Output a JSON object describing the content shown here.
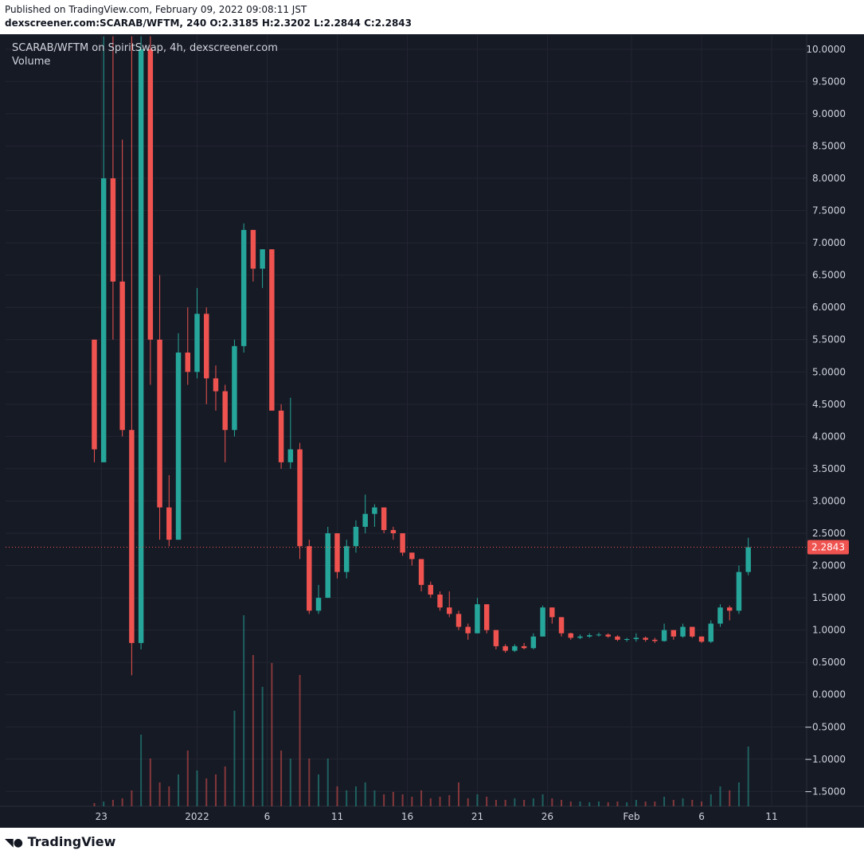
{
  "header": {
    "published": "Published on TradingView.com, February 09, 2022 09:08:11 JST",
    "symbol_line": "dexscreener.com:SCARAB/WFTM, 240 O:2.3185 H:2.3202 L:2.2844 C:2.2843"
  },
  "footer": {
    "brand": "TradingView"
  },
  "chart_data": {
    "type": "candlestick",
    "title": "SCARAB/WFTM on SpiritSwap, 4h, dexscreener.com",
    "volume_label": "Volume",
    "up_color": "#26a69a",
    "down_color": "#ef5350",
    "grid": true,
    "last_price": 2.2843,
    "xlim": [
      -41,
      302
    ],
    "xticks": [
      {
        "value": 0,
        "label": "23"
      },
      {
        "value": 41,
        "label": "2022"
      },
      {
        "value": 71,
        "label": "6"
      },
      {
        "value": 101,
        "label": "11"
      },
      {
        "value": 131,
        "label": "16"
      },
      {
        "value": 161,
        "label": "21"
      },
      {
        "value": 191,
        "label": "26"
      },
      {
        "value": 227,
        "label": "Feb"
      },
      {
        "value": 257,
        "label": "6"
      },
      {
        "value": 287,
        "label": "11"
      }
    ],
    "ylim": [
      -1.73,
      10.22
    ],
    "yticks": [
      {
        "value": -1.5,
        "label": "−1.5000"
      },
      {
        "value": -1,
        "label": "−1.0000"
      },
      {
        "value": -0.5,
        "label": "−0.5000"
      },
      {
        "value": 0,
        "label": "0.0000"
      },
      {
        "value": 0.5,
        "label": "0.5000"
      },
      {
        "value": 1,
        "label": "1.0000"
      },
      {
        "value": 1.5,
        "label": "1.5000"
      },
      {
        "value": 2,
        "label": "2.0000"
      },
      {
        "value": 2.5,
        "label": "2.5000"
      },
      {
        "value": 3,
        "label": "3.0000"
      },
      {
        "value": 3.5,
        "label": "3.5000"
      },
      {
        "value": 4,
        "label": "4.0000"
      },
      {
        "value": 4.5,
        "label": "4.5000"
      },
      {
        "value": 5,
        "label": "5.0000"
      },
      {
        "value": 5.5,
        "label": "5.5000"
      },
      {
        "value": 6,
        "label": "6.0000"
      },
      {
        "value": 6.5,
        "label": "6.5000"
      },
      {
        "value": 7,
        "label": "7.0000"
      },
      {
        "value": 7.5,
        "label": "7.5000"
      },
      {
        "value": 8,
        "label": "8.0000"
      },
      {
        "value": 8.5,
        "label": "8.5000"
      },
      {
        "value": 9,
        "label": "9.0000"
      },
      {
        "value": 9.5,
        "label": "9.5000"
      },
      {
        "value": 10,
        "label": "10.0000"
      }
    ],
    "x": [
      -3,
      1,
      5,
      9,
      13,
      17,
      21,
      25,
      29,
      33,
      37,
      41,
      45,
      49,
      53,
      57,
      61,
      65,
      69,
      73,
      77,
      81,
      85,
      89,
      93,
      97,
      101,
      105,
      109,
      113,
      117,
      121,
      125,
      129,
      133,
      137,
      141,
      145,
      149,
      153,
      157,
      161,
      165,
      169,
      173,
      177,
      181,
      185,
      189,
      193,
      197,
      201,
      205,
      209,
      213,
      217,
      221,
      225,
      229,
      233,
      237,
      241,
      245,
      249,
      253,
      257,
      261,
      265,
      269,
      273,
      277
    ],
    "open": [
      5.5,
      3.6,
      8.0,
      6.4,
      4.1,
      0.8,
      10.0,
      5.5,
      2.9,
      2.4,
      5.3,
      5.0,
      5.9,
      4.9,
      4.7,
      4.1,
      5.4,
      7.2,
      6.6,
      6.9,
      4.4,
      3.6,
      3.8,
      2.3,
      1.3,
      1.5,
      2.5,
      1.9,
      2.3,
      2.6,
      2.8,
      2.9,
      2.55,
      2.5,
      2.2,
      2.1,
      1.7,
      1.55,
      1.35,
      1.25,
      1.05,
      0.95,
      1.4,
      1.0,
      0.75,
      0.68,
      0.75,
      0.72,
      0.9,
      1.35,
      1.2,
      0.95,
      0.88,
      0.9,
      0.92,
      0.93,
      0.9,
      0.85,
      0.86,
      0.88,
      0.85,
      0.83,
      1.0,
      0.9,
      1.05,
      0.9,
      0.82,
      1.1,
      1.35,
      1.3,
      1.9
    ],
    "high": [
      5.5,
      10.2,
      10.2,
      8.6,
      10.2,
      10.2,
      10.2,
      6.5,
      3.4,
      5.6,
      6.0,
      6.3,
      6.0,
      5.1,
      4.8,
      5.5,
      7.3,
      7.2,
      6.9,
      6.9,
      4.5,
      4.6,
      3.9,
      2.4,
      1.7,
      2.6,
      2.5,
      2.4,
      2.7,
      3.1,
      2.95,
      2.9,
      2.6,
      2.5,
      2.2,
      2.1,
      1.75,
      1.6,
      1.6,
      1.3,
      1.1,
      1.5,
      1.4,
      1.0,
      0.78,
      0.78,
      0.8,
      0.95,
      1.38,
      1.35,
      1.2,
      0.96,
      0.93,
      0.95,
      0.96,
      0.95,
      0.92,
      0.88,
      0.95,
      0.9,
      0.88,
      1.1,
      1.0,
      1.1,
      1.05,
      0.9,
      1.15,
      1.4,
      1.38,
      2.0,
      2.43
    ],
    "low": [
      3.6,
      3.6,
      5.5,
      4.0,
      0.3,
      0.7,
      4.8,
      2.4,
      2.3,
      2.4,
      4.8,
      4.9,
      4.5,
      4.4,
      3.6,
      4.0,
      5.3,
      6.4,
      6.3,
      4.4,
      3.5,
      3.5,
      2.1,
      1.25,
      1.25,
      1.5,
      1.8,
      1.8,
      2.2,
      2.5,
      2.6,
      2.5,
      2.4,
      2.15,
      2.0,
      1.6,
      1.5,
      1.3,
      1.2,
      1.0,
      0.85,
      0.95,
      0.95,
      0.7,
      0.65,
      0.66,
      0.7,
      0.7,
      0.9,
      1.1,
      0.9,
      0.85,
      0.86,
      0.88,
      0.9,
      0.88,
      0.83,
      0.82,
      0.82,
      0.82,
      0.8,
      0.82,
      0.85,
      0.88,
      0.88,
      0.8,
      0.8,
      1.05,
      1.15,
      1.25,
      1.85
    ],
    "close": [
      3.8,
      8.0,
      6.4,
      4.1,
      0.8,
      10.0,
      5.5,
      2.9,
      2.4,
      5.3,
      5.0,
      5.9,
      4.9,
      4.7,
      4.1,
      5.4,
      7.2,
      6.6,
      6.9,
      4.4,
      3.6,
      3.8,
      2.3,
      1.3,
      1.5,
      2.5,
      1.9,
      2.3,
      2.6,
      2.8,
      2.9,
      2.55,
      2.5,
      2.2,
      2.1,
      1.7,
      1.55,
      1.35,
      1.25,
      1.05,
      0.95,
      1.4,
      1.0,
      0.75,
      0.68,
      0.75,
      0.72,
      0.9,
      1.35,
      1.2,
      0.95,
      0.88,
      0.9,
      0.92,
      0.93,
      0.9,
      0.85,
      0.86,
      0.88,
      0.85,
      0.83,
      1.0,
      0.9,
      1.05,
      0.9,
      0.82,
      1.1,
      1.35,
      1.3,
      1.9,
      2.2843
    ],
    "volume": [
      4,
      6,
      8,
      10,
      20,
      90,
      60,
      30,
      25,
      40,
      70,
      45,
      35,
      40,
      50,
      120,
      240,
      190,
      150,
      180,
      70,
      60,
      165,
      60,
      40,
      60,
      25,
      20,
      25,
      30,
      20,
      15,
      18,
      15,
      12,
      20,
      10,
      12,
      14,
      30,
      10,
      15,
      12,
      8,
      8,
      10,
      8,
      10,
      15,
      10,
      8,
      6,
      6,
      5,
      6,
      5,
      6,
      5,
      8,
      6,
      6,
      12,
      8,
      10,
      8,
      6,
      15,
      25,
      20,
      30,
      75
    ]
  }
}
